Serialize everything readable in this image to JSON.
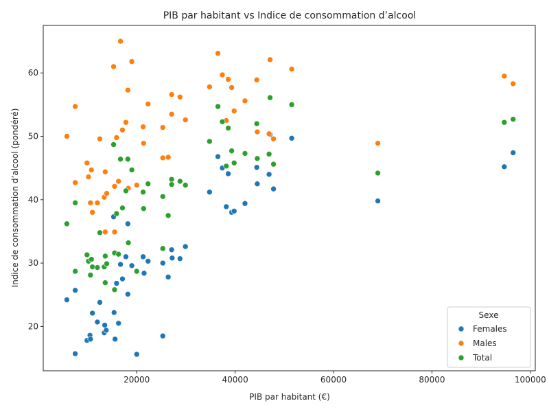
{
  "chart_data": {
    "type": "scatter",
    "title": "PIB par habitant vs Indice de consommation d’alcool",
    "xlabel": "PIB par habitant (€)",
    "ylabel": "Indice de consommation d’alcool (pondéré)",
    "xlim": [
      1000,
      101000
    ],
    "ylim": [
      13,
      67.5
    ],
    "xticks": [
      20000,
      40000,
      60000,
      80000,
      100000
    ],
    "xtick_labels": [
      "20000",
      "40000",
      "60000",
      "80000",
      "100000"
    ],
    "yticks": [
      20,
      30,
      40,
      50,
      60
    ],
    "ytick_labels": [
      "20",
      "30",
      "40",
      "50",
      "60"
    ],
    "grid": false,
    "legend": {
      "title": "Sexe",
      "position": "lower-right",
      "entries": [
        "Females",
        "Males",
        "Total"
      ]
    },
    "series": [
      {
        "name": "Females",
        "color": "#1f77b4",
        "points": [
          [
            5800,
            24.2
          ],
          [
            7500,
            15.7
          ],
          [
            7500,
            25.7
          ],
          [
            9900,
            17.8
          ],
          [
            10500,
            18.6
          ],
          [
            10600,
            18.0
          ],
          [
            11000,
            22.1
          ],
          [
            12000,
            20.7
          ],
          [
            12500,
            23.8
          ],
          [
            13400,
            19.0
          ],
          [
            13500,
            20.2
          ],
          [
            13800,
            19.4
          ],
          [
            15300,
            37.3
          ],
          [
            15400,
            22.2
          ],
          [
            15600,
            18.0
          ],
          [
            15900,
            26.8
          ],
          [
            16300,
            20.5
          ],
          [
            16700,
            29.8
          ],
          [
            17100,
            27.5
          ],
          [
            17800,
            31.0
          ],
          [
            18200,
            36.2
          ],
          [
            18200,
            25.1
          ],
          [
            19000,
            29.6
          ],
          [
            20000,
            15.6
          ],
          [
            21300,
            31.0
          ],
          [
            21500,
            28.4
          ],
          [
            22300,
            30.3
          ],
          [
            25300,
            30.0
          ],
          [
            25300,
            18.5
          ],
          [
            26400,
            27.8
          ],
          [
            27100,
            32.1
          ],
          [
            27200,
            30.8
          ],
          [
            28800,
            30.7
          ],
          [
            29900,
            32.6
          ],
          [
            34800,
            41.2
          ],
          [
            36500,
            46.8
          ],
          [
            37400,
            45.0
          ],
          [
            38200,
            38.9
          ],
          [
            38600,
            44.1
          ],
          [
            39300,
            38.0
          ],
          [
            39800,
            38.2
          ],
          [
            42000,
            39.4
          ],
          [
            44400,
            45.1
          ],
          [
            44500,
            42.5
          ],
          [
            46900,
            44.0
          ],
          [
            47100,
            50.3
          ],
          [
            47800,
            41.7
          ],
          [
            51500,
            49.7
          ],
          [
            69000,
            39.8
          ],
          [
            94700,
            45.2
          ],
          [
            96500,
            47.4
          ]
        ]
      },
      {
        "name": "Males",
        "color": "#ff7f0e",
        "points": [
          [
            5800,
            50.0
          ],
          [
            7500,
            42.7
          ],
          [
            7500,
            54.7
          ],
          [
            9900,
            45.8
          ],
          [
            10200,
            43.6
          ],
          [
            10600,
            39.5
          ],
          [
            10800,
            44.7
          ],
          [
            11000,
            38.0
          ],
          [
            12000,
            39.5
          ],
          [
            12500,
            49.6
          ],
          [
            13400,
            40.4
          ],
          [
            13600,
            44.4
          ],
          [
            13600,
            34.9
          ],
          [
            13900,
            41.0
          ],
          [
            15300,
            61.0
          ],
          [
            15500,
            42.1
          ],
          [
            15500,
            34.9
          ],
          [
            15900,
            49.8
          ],
          [
            16300,
            42.9
          ],
          [
            16700,
            65.0
          ],
          [
            17100,
            51.0
          ],
          [
            17800,
            52.2
          ],
          [
            18200,
            57.3
          ],
          [
            18300,
            41.8
          ],
          [
            19000,
            61.8
          ],
          [
            20000,
            42.3
          ],
          [
            21300,
            51.5
          ],
          [
            21400,
            48.9
          ],
          [
            22300,
            55.1
          ],
          [
            25300,
            46.6
          ],
          [
            25300,
            51.4
          ],
          [
            26400,
            46.7
          ],
          [
            27100,
            56.6
          ],
          [
            27100,
            53.5
          ],
          [
            28800,
            56.2
          ],
          [
            29900,
            52.6
          ],
          [
            34800,
            57.8
          ],
          [
            36500,
            63.1
          ],
          [
            37400,
            59.7
          ],
          [
            38200,
            52.5
          ],
          [
            38600,
            59.0
          ],
          [
            39300,
            57.7
          ],
          [
            39800,
            54.0
          ],
          [
            42000,
            55.6
          ],
          [
            44400,
            58.9
          ],
          [
            44500,
            50.7
          ],
          [
            46900,
            50.4
          ],
          [
            47100,
            62.1
          ],
          [
            47800,
            49.6
          ],
          [
            51500,
            60.6
          ],
          [
            69000,
            48.9
          ],
          [
            94700,
            59.5
          ],
          [
            96500,
            58.3
          ]
        ]
      },
      {
        "name": "Total",
        "color": "#2ca02c",
        "points": [
          [
            5800,
            36.2
          ],
          [
            7500,
            39.5
          ],
          [
            7500,
            28.7
          ],
          [
            9900,
            31.3
          ],
          [
            10200,
            30.3
          ],
          [
            10600,
            28.1
          ],
          [
            10800,
            30.6
          ],
          [
            11000,
            29.4
          ],
          [
            12000,
            29.3
          ],
          [
            12500,
            34.8
          ],
          [
            13400,
            29.4
          ],
          [
            13600,
            31.1
          ],
          [
            13600,
            26.9
          ],
          [
            13900,
            29.9
          ],
          [
            15300,
            48.7
          ],
          [
            15500,
            31.6
          ],
          [
            15500,
            25.8
          ],
          [
            15900,
            37.8
          ],
          [
            16300,
            31.4
          ],
          [
            16700,
            46.4
          ],
          [
            17100,
            38.7
          ],
          [
            17800,
            41.4
          ],
          [
            18200,
            46.4
          ],
          [
            18300,
            33.2
          ],
          [
            19000,
            44.7
          ],
          [
            20000,
            28.7
          ],
          [
            21300,
            41.2
          ],
          [
            21400,
            38.6
          ],
          [
            22300,
            42.5
          ],
          [
            25300,
            32.3
          ],
          [
            25300,
            40.5
          ],
          [
            26400,
            37.5
          ],
          [
            27100,
            43.2
          ],
          [
            27100,
            42.4
          ],
          [
            28800,
            42.9
          ],
          [
            29900,
            42.3
          ],
          [
            34800,
            49.2
          ],
          [
            36500,
            54.7
          ],
          [
            37400,
            52.3
          ],
          [
            38200,
            45.3
          ],
          [
            38600,
            51.3
          ],
          [
            39300,
            47.7
          ],
          [
            39800,
            45.8
          ],
          [
            42000,
            47.3
          ],
          [
            44400,
            52.0
          ],
          [
            44500,
            46.5
          ],
          [
            46900,
            47.2
          ],
          [
            47100,
            56.1
          ],
          [
            47800,
            45.6
          ],
          [
            51500,
            55.0
          ],
          [
            69000,
            44.2
          ],
          [
            94700,
            52.2
          ],
          [
            96500,
            52.7
          ]
        ]
      }
    ]
  }
}
